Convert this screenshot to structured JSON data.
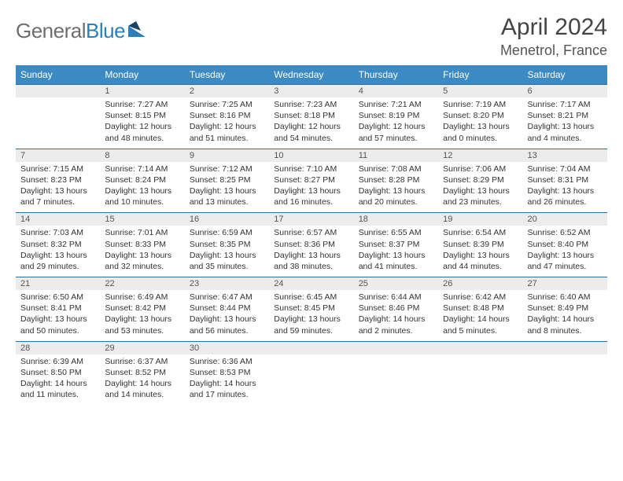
{
  "logo": {
    "text1": "General",
    "text2": "Blue"
  },
  "title": "April 2024",
  "location": "Menetrol, France",
  "colors": {
    "header_bg": "#3b8ac4",
    "header_text": "#ffffff",
    "daynum_bg": "#ececec",
    "daynum_border": "#2a6ea8",
    "body_text": "#333333",
    "logo_gray": "#6e6e6e",
    "logo_blue": "#2a7fbf"
  },
  "dow": [
    "Sunday",
    "Monday",
    "Tuesday",
    "Wednesday",
    "Thursday",
    "Friday",
    "Saturday"
  ],
  "weeks": [
    [
      null,
      {
        "n": "1",
        "sr": "Sunrise: 7:27 AM",
        "ss": "Sunset: 8:15 PM",
        "d1": "Daylight: 12 hours",
        "d2": "and 48 minutes."
      },
      {
        "n": "2",
        "sr": "Sunrise: 7:25 AM",
        "ss": "Sunset: 8:16 PM",
        "d1": "Daylight: 12 hours",
        "d2": "and 51 minutes."
      },
      {
        "n": "3",
        "sr": "Sunrise: 7:23 AM",
        "ss": "Sunset: 8:18 PM",
        "d1": "Daylight: 12 hours",
        "d2": "and 54 minutes."
      },
      {
        "n": "4",
        "sr": "Sunrise: 7:21 AM",
        "ss": "Sunset: 8:19 PM",
        "d1": "Daylight: 12 hours",
        "d2": "and 57 minutes."
      },
      {
        "n": "5",
        "sr": "Sunrise: 7:19 AM",
        "ss": "Sunset: 8:20 PM",
        "d1": "Daylight: 13 hours",
        "d2": "and 0 minutes."
      },
      {
        "n": "6",
        "sr": "Sunrise: 7:17 AM",
        "ss": "Sunset: 8:21 PM",
        "d1": "Daylight: 13 hours",
        "d2": "and 4 minutes."
      }
    ],
    [
      {
        "n": "7",
        "sr": "Sunrise: 7:15 AM",
        "ss": "Sunset: 8:23 PM",
        "d1": "Daylight: 13 hours",
        "d2": "and 7 minutes."
      },
      {
        "n": "8",
        "sr": "Sunrise: 7:14 AM",
        "ss": "Sunset: 8:24 PM",
        "d1": "Daylight: 13 hours",
        "d2": "and 10 minutes."
      },
      {
        "n": "9",
        "sr": "Sunrise: 7:12 AM",
        "ss": "Sunset: 8:25 PM",
        "d1": "Daylight: 13 hours",
        "d2": "and 13 minutes."
      },
      {
        "n": "10",
        "sr": "Sunrise: 7:10 AM",
        "ss": "Sunset: 8:27 PM",
        "d1": "Daylight: 13 hours",
        "d2": "and 16 minutes."
      },
      {
        "n": "11",
        "sr": "Sunrise: 7:08 AM",
        "ss": "Sunset: 8:28 PM",
        "d1": "Daylight: 13 hours",
        "d2": "and 20 minutes."
      },
      {
        "n": "12",
        "sr": "Sunrise: 7:06 AM",
        "ss": "Sunset: 8:29 PM",
        "d1": "Daylight: 13 hours",
        "d2": "and 23 minutes."
      },
      {
        "n": "13",
        "sr": "Sunrise: 7:04 AM",
        "ss": "Sunset: 8:31 PM",
        "d1": "Daylight: 13 hours",
        "d2": "and 26 minutes."
      }
    ],
    [
      {
        "n": "14",
        "sr": "Sunrise: 7:03 AM",
        "ss": "Sunset: 8:32 PM",
        "d1": "Daylight: 13 hours",
        "d2": "and 29 minutes."
      },
      {
        "n": "15",
        "sr": "Sunrise: 7:01 AM",
        "ss": "Sunset: 8:33 PM",
        "d1": "Daylight: 13 hours",
        "d2": "and 32 minutes."
      },
      {
        "n": "16",
        "sr": "Sunrise: 6:59 AM",
        "ss": "Sunset: 8:35 PM",
        "d1": "Daylight: 13 hours",
        "d2": "and 35 minutes."
      },
      {
        "n": "17",
        "sr": "Sunrise: 6:57 AM",
        "ss": "Sunset: 8:36 PM",
        "d1": "Daylight: 13 hours",
        "d2": "and 38 minutes."
      },
      {
        "n": "18",
        "sr": "Sunrise: 6:55 AM",
        "ss": "Sunset: 8:37 PM",
        "d1": "Daylight: 13 hours",
        "d2": "and 41 minutes."
      },
      {
        "n": "19",
        "sr": "Sunrise: 6:54 AM",
        "ss": "Sunset: 8:39 PM",
        "d1": "Daylight: 13 hours",
        "d2": "and 44 minutes."
      },
      {
        "n": "20",
        "sr": "Sunrise: 6:52 AM",
        "ss": "Sunset: 8:40 PM",
        "d1": "Daylight: 13 hours",
        "d2": "and 47 minutes."
      }
    ],
    [
      {
        "n": "21",
        "sr": "Sunrise: 6:50 AM",
        "ss": "Sunset: 8:41 PM",
        "d1": "Daylight: 13 hours",
        "d2": "and 50 minutes."
      },
      {
        "n": "22",
        "sr": "Sunrise: 6:49 AM",
        "ss": "Sunset: 8:42 PM",
        "d1": "Daylight: 13 hours",
        "d2": "and 53 minutes."
      },
      {
        "n": "23",
        "sr": "Sunrise: 6:47 AM",
        "ss": "Sunset: 8:44 PM",
        "d1": "Daylight: 13 hours",
        "d2": "and 56 minutes."
      },
      {
        "n": "24",
        "sr": "Sunrise: 6:45 AM",
        "ss": "Sunset: 8:45 PM",
        "d1": "Daylight: 13 hours",
        "d2": "and 59 minutes."
      },
      {
        "n": "25",
        "sr": "Sunrise: 6:44 AM",
        "ss": "Sunset: 8:46 PM",
        "d1": "Daylight: 14 hours",
        "d2": "and 2 minutes."
      },
      {
        "n": "26",
        "sr": "Sunrise: 6:42 AM",
        "ss": "Sunset: 8:48 PM",
        "d1": "Daylight: 14 hours",
        "d2": "and 5 minutes."
      },
      {
        "n": "27",
        "sr": "Sunrise: 6:40 AM",
        "ss": "Sunset: 8:49 PM",
        "d1": "Daylight: 14 hours",
        "d2": "and 8 minutes."
      }
    ],
    [
      {
        "n": "28",
        "sr": "Sunrise: 6:39 AM",
        "ss": "Sunset: 8:50 PM",
        "d1": "Daylight: 14 hours",
        "d2": "and 11 minutes."
      },
      {
        "n": "29",
        "sr": "Sunrise: 6:37 AM",
        "ss": "Sunset: 8:52 PM",
        "d1": "Daylight: 14 hours",
        "d2": "and 14 minutes."
      },
      {
        "n": "30",
        "sr": "Sunrise: 6:36 AM",
        "ss": "Sunset: 8:53 PM",
        "d1": "Daylight: 14 hours",
        "d2": "and 17 minutes."
      },
      null,
      null,
      null,
      null
    ]
  ]
}
